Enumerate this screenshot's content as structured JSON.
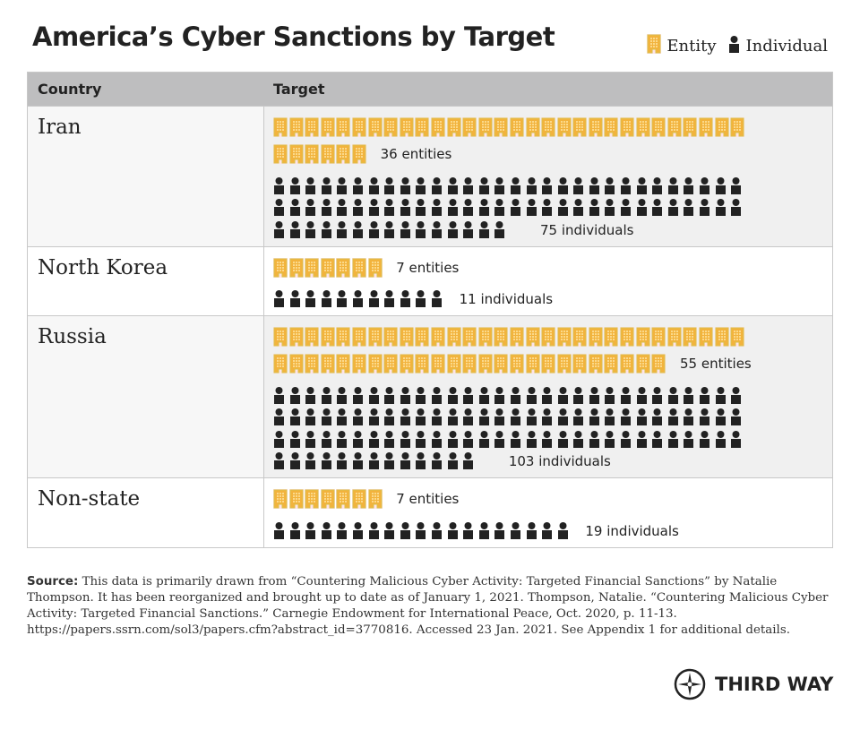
{
  "title": "America’s Cyber Sanctions by Target",
  "legend": {
    "entity": "Entity",
    "individual": "Individual"
  },
  "colors": {
    "entity": "#f2b33d",
    "entity_outline": "#d9c04a",
    "individual": "#222222",
    "header": "#bebebf"
  },
  "chart_data": {
    "type": "table",
    "title": "America’s Cyber Sanctions by Target",
    "columns": [
      "Country",
      "Target"
    ],
    "rows": [
      {
        "country": "Iran",
        "entities": 36,
        "individuals": 75,
        "entities_label": "36 entities",
        "individuals_label": "75 individuals"
      },
      {
        "country": "North Korea",
        "entities": 7,
        "individuals": 11,
        "entities_label": "7 entities",
        "individuals_label": "11 individuals"
      },
      {
        "country": "Russia",
        "entities": 55,
        "individuals": 103,
        "entities_label": "55 entities",
        "individuals_label": "103 individuals"
      },
      {
        "country": "Non-state",
        "entities": 7,
        "individuals": 19,
        "entities_label": "7 entities",
        "individuals_label": "19 individuals"
      }
    ]
  },
  "source": {
    "label": "Source:",
    "text": " This data is primarily drawn from “Countering Malicious Cyber Activity: Targeted Financial Sanctions” by Natalie Thompson. It has been reorganized and brought up to date as of January 1, 2021.  Thompson, Natalie. “Countering Malicious Cyber Activity: Targeted Financial Sanctions.” Carnegie Endowment for International Peace, Oct. 2020, p. 11-13. https://papers.ssrn.com/sol3/papers.cfm?abstract_id=3770816. Accessed 23 Jan. 2021. See Appendix 1 for additional details."
  },
  "logo": "THIRD WAY"
}
